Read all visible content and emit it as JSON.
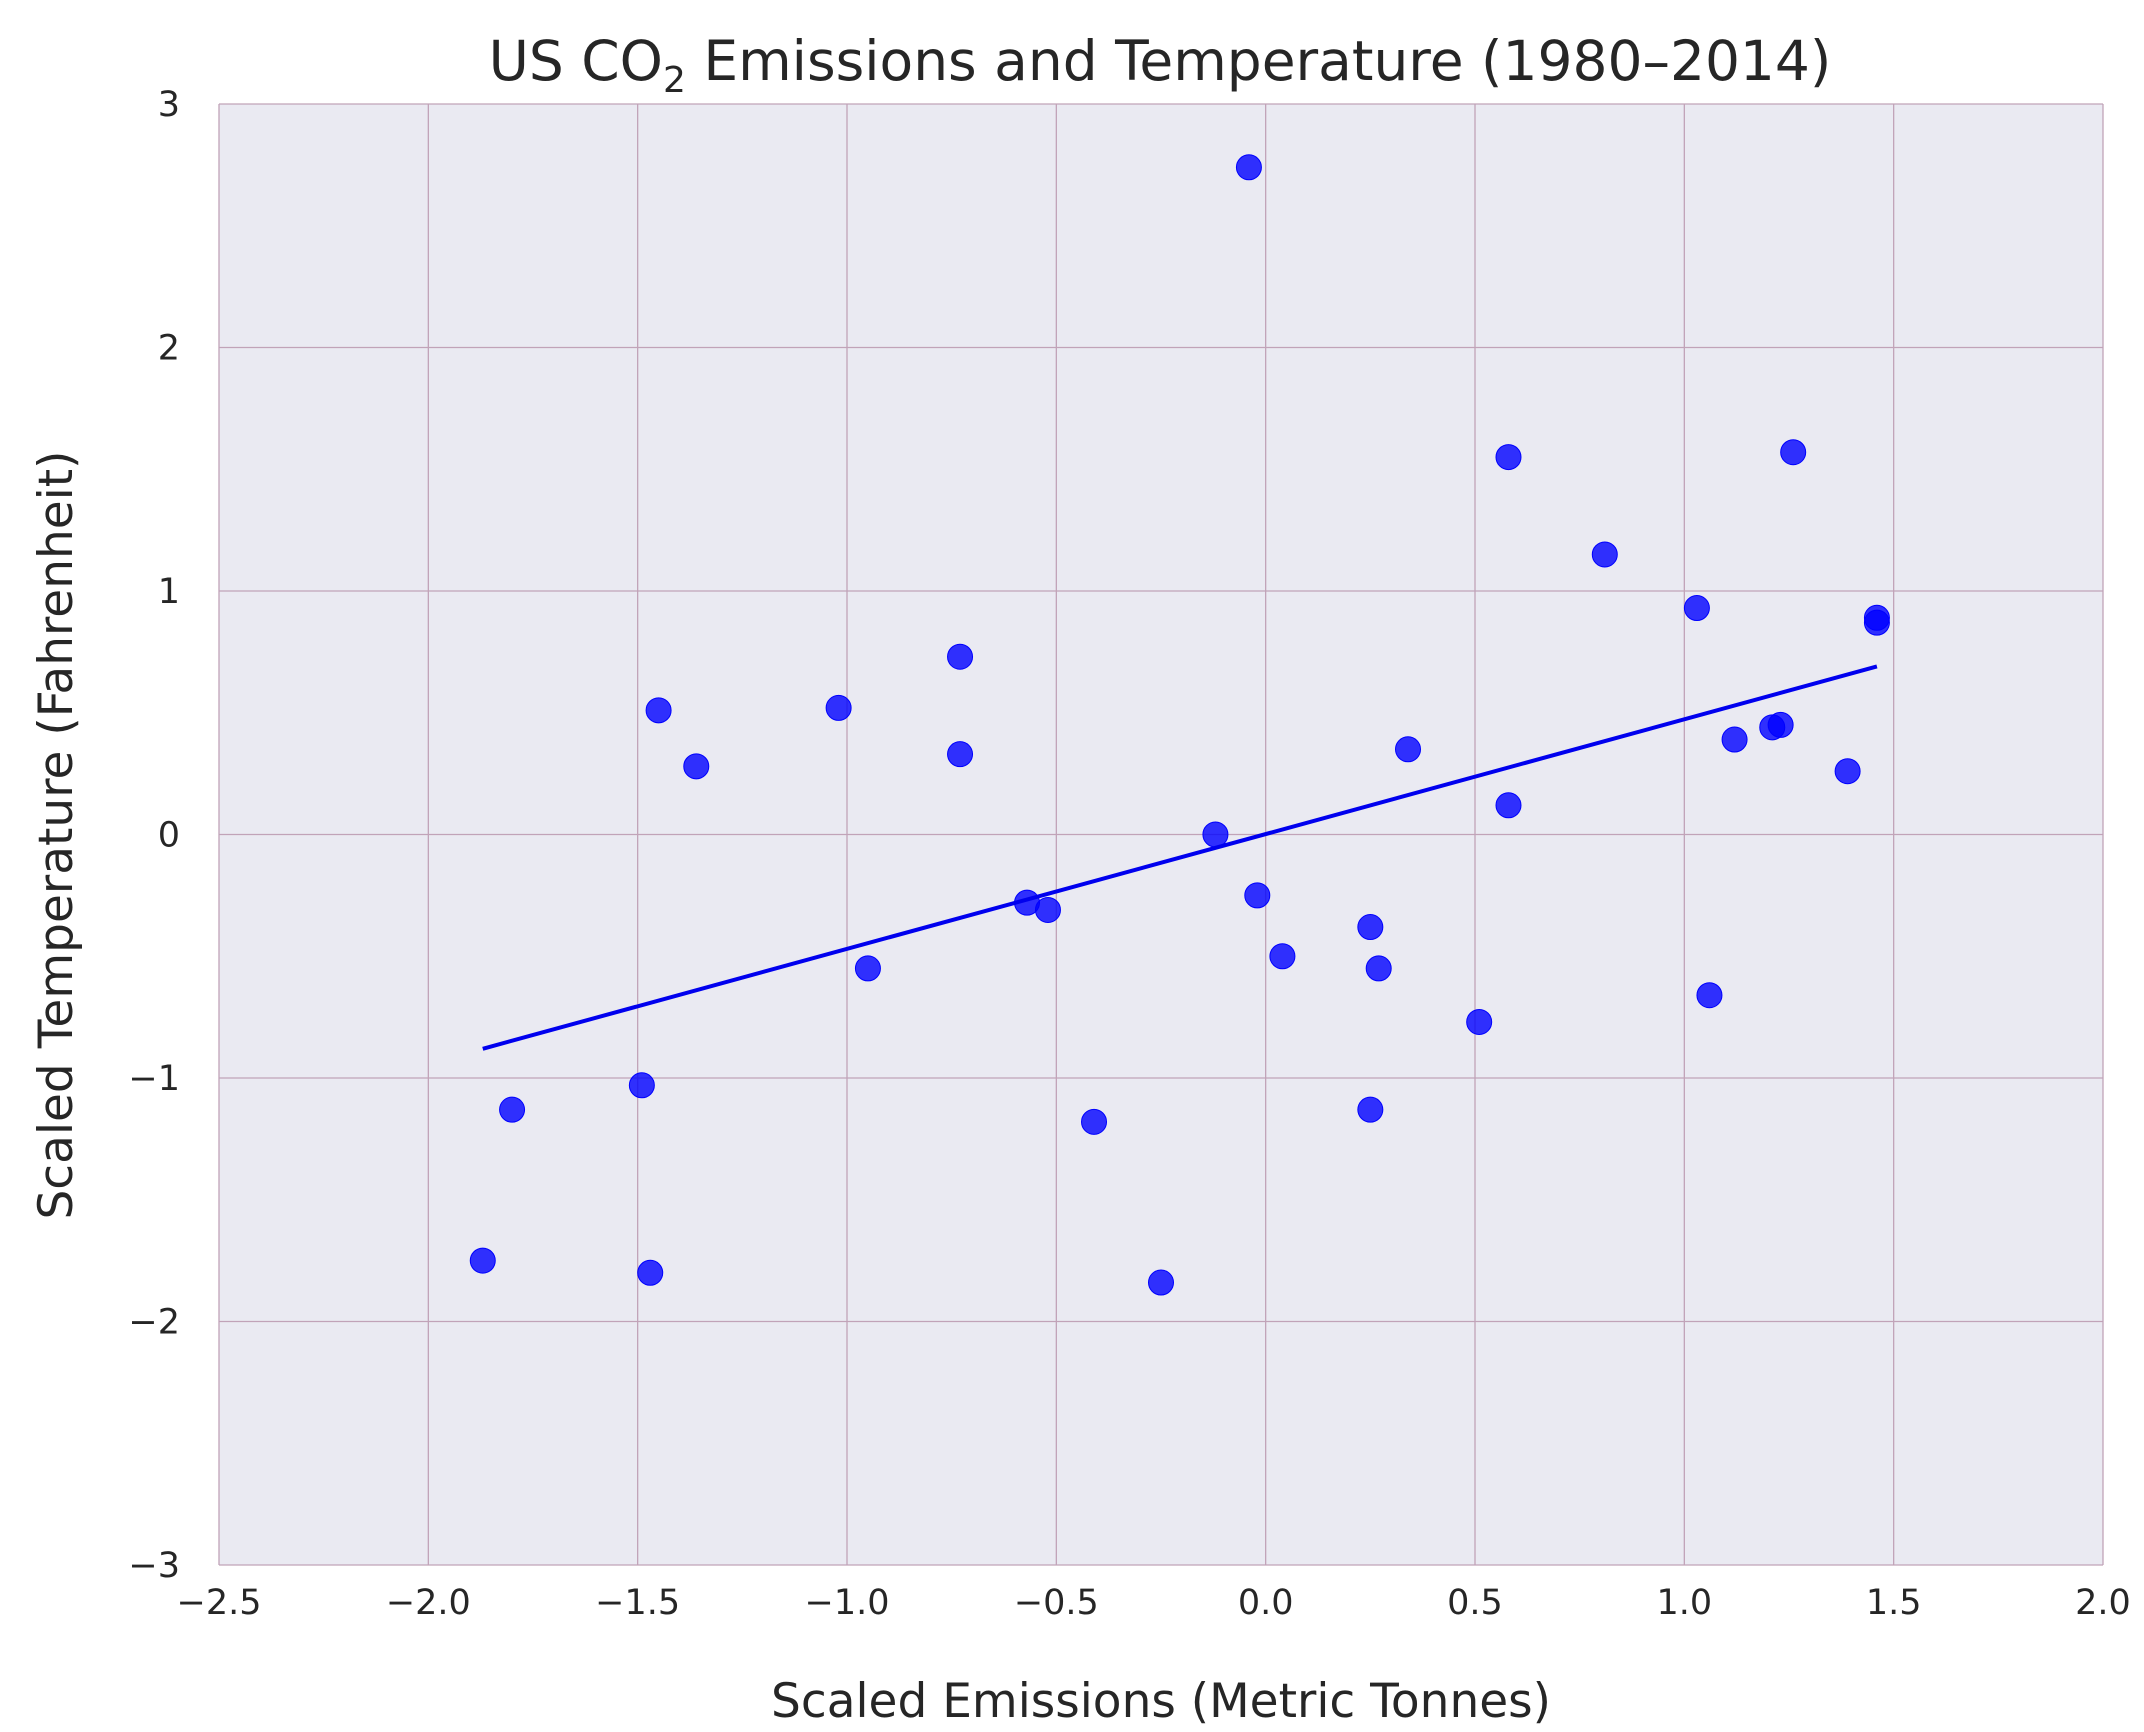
{
  "chart_data": {
    "type": "scatter",
    "title_main": "US CO",
    "title_sub": "2",
    "title_rest": " Emissions and Temperature (1980–2014)",
    "xlabel": "Scaled Emissions (Metric Tonnes)",
    "ylabel": "Scaled Temperature (Fahrenheit)",
    "xlim": [
      -2.5,
      2.0
    ],
    "ylim": [
      -3,
      3
    ],
    "xticks": [
      -2.5,
      -2.0,
      -1.5,
      -1.0,
      -0.5,
      0.0,
      0.5,
      1.0,
      1.5,
      2.0
    ],
    "xtick_labels": [
      "−2.5",
      "−2.0",
      "−1.5",
      "−1.0",
      "−0.5",
      "0.0",
      "0.5",
      "1.0",
      "1.5",
      "2.0"
    ],
    "yticks": [
      -3,
      -2,
      -1,
      0,
      1,
      2,
      3
    ],
    "ytick_labels": [
      "−3",
      "−2",
      "−1",
      "0",
      "1",
      "2",
      "3"
    ],
    "grid": true,
    "background_color": "#eaeaf2",
    "grid_color": "#c1a3b8",
    "point_color": "#0000ff",
    "line_color": "#0000ee",
    "points": [
      {
        "x": -1.87,
        "y": -1.75
      },
      {
        "x": -1.8,
        "y": -1.13
      },
      {
        "x": -1.49,
        "y": -1.03
      },
      {
        "x": -1.47,
        "y": -1.8
      },
      {
        "x": -1.45,
        "y": 0.51
      },
      {
        "x": -1.36,
        "y": 0.28
      },
      {
        "x": -1.02,
        "y": 0.52
      },
      {
        "x": -0.95,
        "y": -0.55
      },
      {
        "x": -0.73,
        "y": 0.73
      },
      {
        "x": -0.73,
        "y": 0.33
      },
      {
        "x": -0.57,
        "y": -0.28
      },
      {
        "x": -0.52,
        "y": -0.31
      },
      {
        "x": -0.41,
        "y": -1.18
      },
      {
        "x": -0.25,
        "y": -1.84
      },
      {
        "x": -0.12,
        "y": 0.0
      },
      {
        "x": -0.04,
        "y": 2.74
      },
      {
        "x": -0.02,
        "y": -0.25
      },
      {
        "x": 0.04,
        "y": -0.5
      },
      {
        "x": 0.25,
        "y": -0.38
      },
      {
        "x": 0.25,
        "y": -1.13
      },
      {
        "x": 0.27,
        "y": -0.55
      },
      {
        "x": 0.34,
        "y": 0.35
      },
      {
        "x": 0.51,
        "y": -0.77
      },
      {
        "x": 0.58,
        "y": 1.55
      },
      {
        "x": 0.58,
        "y": 0.12
      },
      {
        "x": 0.81,
        "y": 1.15
      },
      {
        "x": 1.03,
        "y": 0.93
      },
      {
        "x": 1.06,
        "y": -0.66
      },
      {
        "x": 1.12,
        "y": 0.39
      },
      {
        "x": 1.21,
        "y": 0.44
      },
      {
        "x": 1.23,
        "y": 0.45
      },
      {
        "x": 1.26,
        "y": 1.57
      },
      {
        "x": 1.39,
        "y": 0.26
      },
      {
        "x": 1.46,
        "y": 0.89
      },
      {
        "x": 1.46,
        "y": 0.87
      }
    ],
    "fit_line": {
      "x": [
        -1.87,
        1.46
      ],
      "y": [
        -0.88,
        0.69
      ]
    }
  }
}
